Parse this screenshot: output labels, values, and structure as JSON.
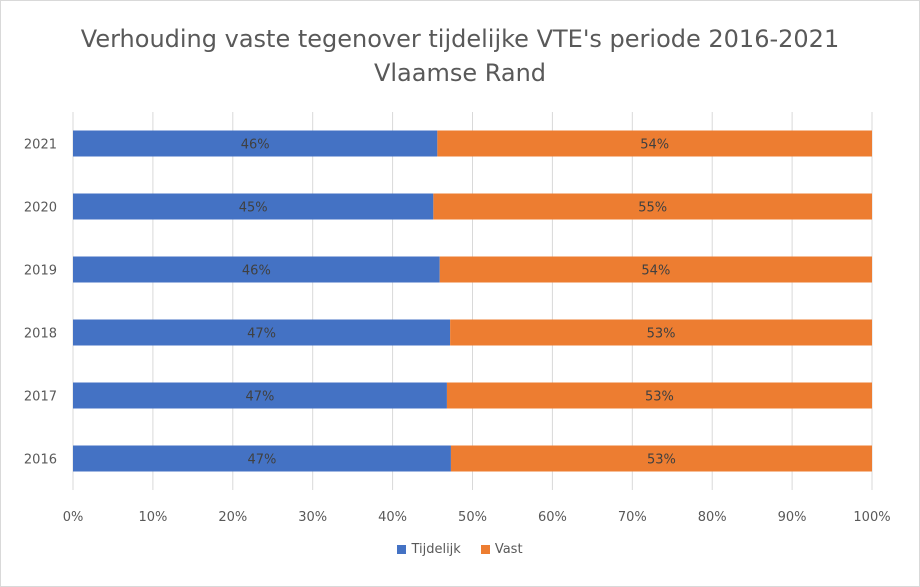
{
  "chart_data": {
    "type": "bar",
    "orientation": "horizontal",
    "stacked": true,
    "title": [
      "Verhouding vaste tegenover tijdelijke VTE's periode 2016-2021",
      "Vlaamse Rand"
    ],
    "categories": [
      "2021",
      "2020",
      "2019",
      "2018",
      "2017",
      "2016"
    ],
    "series": [
      {
        "name": "Tijdelijk",
        "color": "#4472c4",
        "values": [
          45.6,
          45.1,
          45.9,
          47.2,
          46.8,
          47.3
        ],
        "labels": [
          "46%",
          "45%",
          "46%",
          "47%",
          "47%",
          "47%"
        ]
      },
      {
        "name": "Vast",
        "color": "#ed7d31",
        "values": [
          54.4,
          54.9,
          54.1,
          52.8,
          53.2,
          52.7
        ],
        "labels": [
          "54%",
          "55%",
          "54%",
          "53%",
          "53%",
          "53%"
        ]
      }
    ],
    "xlim": [
      0,
      100
    ],
    "xticks": [
      "0%",
      "10%",
      "20%",
      "30%",
      "40%",
      "50%",
      "60%",
      "70%",
      "80%",
      "90%",
      "100%"
    ],
    "grid": true,
    "legend": "bottom"
  }
}
